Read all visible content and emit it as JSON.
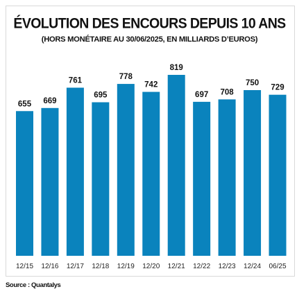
{
  "title": "ÉVOLUTION DES ENCOURS DEPUIS 10 ANS",
  "subtitle": "(HORS MONÉTAIRE AU 30/06/2025, EN MILLIARDS D’EUROS)",
  "source": "Source : Quantalys",
  "colors": {
    "bar": "#0a83bd",
    "text": "#111111",
    "border": "#d9d9d9"
  },
  "chart_data": {
    "type": "bar",
    "title": "ÉVOLUTION DES ENCOURS DEPUIS 10 ANS",
    "subtitle": "(HORS MONÉTAIRE AU 30/06/2025, EN MILLIARDS D’EUROS)",
    "categories": [
      "12/15",
      "12/16",
      "12/17",
      "12/18",
      "12/19",
      "12/20",
      "12/21",
      "12/22",
      "12/23",
      "12/24",
      "06/25"
    ],
    "values": [
      655,
      669,
      761,
      695,
      778,
      742,
      819,
      697,
      708,
      750,
      729
    ],
    "xlabel": "",
    "ylabel": "",
    "ylim": [
      0,
      819
    ],
    "grid": false,
    "data_labels": true
  }
}
